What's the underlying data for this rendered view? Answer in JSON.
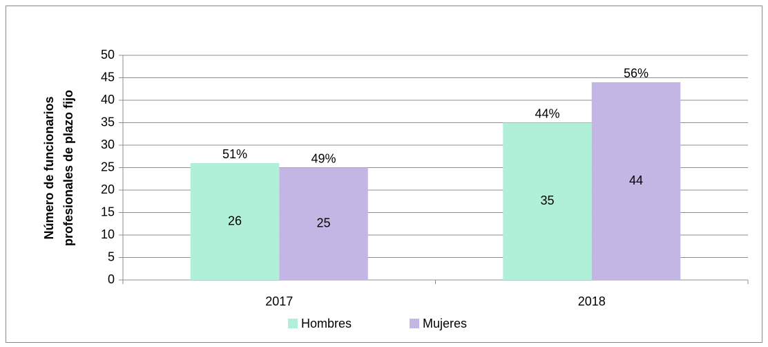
{
  "chart_data": {
    "type": "bar",
    "ylabel": [
      "Número de funcionarios",
      "profesionales de plazo fijo"
    ],
    "categories": [
      "2017",
      "2018"
    ],
    "series": [
      {
        "name": "Hombres",
        "color": "#b0f0d8",
        "values": [
          26,
          35
        ],
        "shares": [
          51,
          44
        ],
        "share_labels": [
          "51%",
          "44%"
        ]
      },
      {
        "name": "Mujeres",
        "color": "#c3b6e4",
        "values": [
          25,
          44
        ],
        "shares": [
          49,
          56
        ],
        "share_labels": [
          "49%",
          "56%"
        ]
      }
    ],
    "ylim": [
      0,
      50
    ],
    "yticks": [
      0,
      5,
      10,
      15,
      20,
      25,
      30,
      35,
      40,
      45,
      50
    ],
    "grid": true,
    "legend": "bottom"
  }
}
